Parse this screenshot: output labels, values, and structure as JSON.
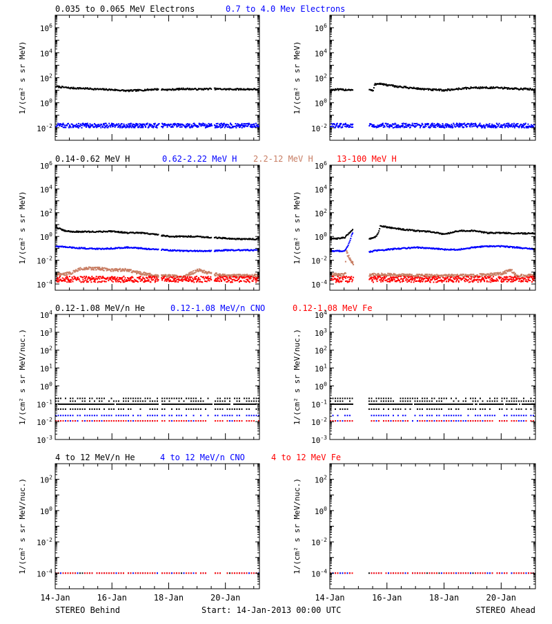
{
  "footer": {
    "left": "STEREO Behind",
    "center": "Start: 14-Jan-2013 00:00 UTC",
    "right": "STEREO Ahead"
  },
  "colors": {
    "black": "#000000",
    "blue": "#0000ff",
    "tan": "#c87e64",
    "red": "#ff0000"
  },
  "xaxis": {
    "range_days": [
      0,
      7.2
    ],
    "tick_days": [
      0,
      2,
      4,
      6
    ],
    "tick_labels": [
      "14-Jan",
      "16-Jan",
      "18-Jan",
      "20-Jan"
    ],
    "minor_step_days": 0.5
  },
  "chart_data": [
    {
      "type": "scatter",
      "row": 0,
      "spacecraft": "STEREO Behind",
      "ylog": true,
      "ylabel": "1/(cm² s sr MeV)",
      "ylim": [
        0.001,
        10000000
      ],
      "yticks": [
        {
          "v": 1000000,
          "m": "10",
          "e": "6"
        },
        {
          "v": 10000,
          "m": "10",
          "e": "4"
        },
        {
          "v": 100,
          "m": "10",
          "e": "2"
        },
        {
          "v": 1,
          "m": "10",
          "e": "0"
        },
        {
          "v": 0.01,
          "m": "10",
          "e": "-2"
        }
      ],
      "legend": [
        {
          "text": "0.035 to 0.065 MeV Electrons",
          "color": "#000000"
        },
        {
          "text": "0.7 to 4.0 Mev Electrons",
          "color": "#0000ff"
        }
      ],
      "gaps": [
        [
          3.62,
          3.72
        ],
        [
          5.5,
          5.57
        ]
      ],
      "series": [
        {
          "name": "0.035 to 0.065 MeV Electrons",
          "color": "#000000",
          "scatter_dex": 0.06,
          "x": [
            0,
            0.5,
            1,
            1.5,
            2,
            2.5,
            3,
            3.5,
            4,
            4.5,
            5,
            5.5,
            6,
            6.5,
            7.2
          ],
          "y": [
            20,
            15,
            14,
            12,
            11,
            9,
            10,
            12,
            11,
            13,
            12,
            13,
            12,
            12,
            12
          ]
        },
        {
          "name": "0.7 to 4.0 Mev Electrons",
          "color": "#0000ff",
          "scatter_dex": 0.18,
          "x": [
            0,
            7.2
          ],
          "y": [
            0.015,
            0.015
          ]
        }
      ]
    },
    {
      "type": "scatter",
      "row": 0,
      "spacecraft": "STEREO Ahead",
      "ylog": true,
      "ylabel": "1/(cm² s sr MeV)",
      "ylim": [
        0.001,
        10000000
      ],
      "yticks": [
        {
          "v": 1000000,
          "m": "10",
          "e": "6"
        },
        {
          "v": 10000,
          "m": "10",
          "e": "4"
        },
        {
          "v": 100,
          "m": "10",
          "e": "2"
        },
        {
          "v": 1,
          "m": "10",
          "e": "0"
        },
        {
          "v": 0.01,
          "m": "10",
          "e": "-2"
        }
      ],
      "legend": [],
      "gaps": [
        [
          0.78,
          1.35
        ]
      ],
      "series": [
        {
          "name": "0.035 to 0.065 MeV Electrons",
          "color": "#000000",
          "scatter_dex": 0.07,
          "x": [
            0,
            0.75,
            1.35,
            1.5,
            1.55,
            1.7,
            2,
            2.5,
            3,
            3.5,
            4,
            4.5,
            5,
            5.5,
            6,
            6.5,
            7.2
          ],
          "y": [
            11,
            11,
            11,
            9,
            30,
            35,
            25,
            18,
            14,
            11,
            10,
            13,
            16,
            16,
            15,
            13,
            12
          ]
        },
        {
          "name": "0.7 to 4.0 Mev Electrons",
          "color": "#0000ff",
          "scatter_dex": 0.18,
          "x": [
            0,
            7.2
          ],
          "y": [
            0.015,
            0.015
          ]
        }
      ]
    },
    {
      "type": "scatter",
      "row": 1,
      "spacecraft": "STEREO Behind",
      "ylog": true,
      "ylabel": "1/(cm² s sr MeV)",
      "ylim": [
        3e-05,
        1000000
      ],
      "yticks": [
        {
          "v": 1000000,
          "m": "10",
          "e": "6"
        },
        {
          "v": 10000,
          "m": "10",
          "e": "4"
        },
        {
          "v": 100,
          "m": "10",
          "e": "2"
        },
        {
          "v": 1,
          "m": "10",
          "e": "0"
        },
        {
          "v": 0.01,
          "m": "10",
          "e": "-2"
        },
        {
          "v": 0.0001,
          "m": "10",
          "e": "-4"
        }
      ],
      "legend": [
        {
          "text": "0.14-0.62 MeV H",
          "color": "#000000"
        },
        {
          "text": "0.62-2.22 MeV H",
          "color": "#0000ff"
        },
        {
          "text": "2.2-12 MeV H",
          "color": "#c87e64"
        },
        {
          "text": "13-100 MeV H",
          "color": "#ff0000"
        }
      ],
      "gaps": [
        [
          3.62,
          3.72
        ],
        [
          5.5,
          5.57
        ]
      ],
      "series": [
        {
          "name": "0.14-0.62 MeV H",
          "color": "#000000",
          "scatter_dex": 0.05,
          "x": [
            0,
            0.3,
            0.6,
            1,
            1.5,
            2,
            2.5,
            3,
            3.5,
            4,
            4.5,
            5,
            5.5,
            6,
            6.5,
            7.2
          ],
          "y": [
            6,
            3,
            2.5,
            2.5,
            2.5,
            2.8,
            2,
            2,
            1.5,
            1,
            1,
            1,
            0.8,
            0.7,
            0.6,
            0.6
          ]
        },
        {
          "name": "0.62-2.22 MeV H",
          "color": "#0000ff",
          "scatter_dex": 0.05,
          "x": [
            0,
            0.5,
            1,
            1.5,
            2,
            2.5,
            3,
            3.5,
            4,
            4.5,
            5,
            5.5,
            6,
            6.5,
            7.2
          ],
          "y": [
            0.15,
            0.12,
            0.1,
            0.09,
            0.1,
            0.12,
            0.1,
            0.08,
            0.07,
            0.06,
            0.06,
            0.06,
            0.07,
            0.07,
            0.07
          ]
        },
        {
          "name": "2.2-12 MeV H",
          "color": "#c87e64",
          "scatter_dex": 0.12,
          "x": [
            0,
            0.5,
            0.9,
            1.5,
            2,
            2.5,
            3,
            3.5,
            4,
            4.5,
            5,
            5.5,
            6,
            6.5,
            7.2
          ],
          "y": [
            0.0006,
            0.0008,
            0.002,
            0.002,
            0.0015,
            0.0015,
            0.0008,
            0.0005,
            0.0005,
            0.0004,
            0.0015,
            0.0007,
            0.0005,
            0.0005,
            0.0005
          ]
        },
        {
          "name": "13-100 MeV H",
          "color": "#ff0000",
          "scatter_dex": 0.25,
          "x": [
            0,
            7.2
          ],
          "y": [
            0.00025,
            0.00025
          ]
        }
      ]
    },
    {
      "type": "scatter",
      "row": 1,
      "spacecraft": "STEREO Ahead",
      "ylog": true,
      "ylabel": "1/(cm² s sr MeV)",
      "ylim": [
        3e-05,
        1000000
      ],
      "yticks": [
        {
          "v": 1000000,
          "m": "10",
          "e": "6"
        },
        {
          "v": 10000,
          "m": "10",
          "e": "4"
        },
        {
          "v": 100,
          "m": "10",
          "e": "2"
        },
        {
          "v": 1,
          "m": "10",
          "e": "0"
        },
        {
          "v": 0.01,
          "m": "10",
          "e": "-2"
        },
        {
          "v": 0.0001,
          "m": "10",
          "e": "-4"
        }
      ],
      "legend": [],
      "gaps": [
        [
          0.78,
          1.35
        ]
      ],
      "series": [
        {
          "name": "0.14-0.62 MeV H",
          "color": "#000000",
          "scatter_dex": 0.05,
          "x": [
            0,
            0.5,
            0.78,
            1.35,
            1.6,
            1.7,
            1.75,
            2,
            2.5,
            3,
            3.5,
            4,
            4.5,
            5,
            5.5,
            6,
            6.5,
            7.2
          ],
          "y": [
            0.6,
            0.8,
            4,
            0.6,
            1,
            3,
            8,
            6,
            4,
            3,
            2.5,
            1.5,
            3,
            3,
            2,
            2,
            1.8,
            1.8
          ]
        },
        {
          "name": "0.62-2.22 MeV H",
          "color": "#0000ff",
          "scatter_dex": 0.05,
          "x": [
            0,
            0.5,
            0.6,
            0.78,
            1.35,
            1.5,
            2,
            2.5,
            3,
            3.5,
            4,
            4.5,
            5,
            5.5,
            6,
            6.5,
            7.2
          ],
          "y": [
            0.06,
            0.06,
            0.15,
            2,
            0.05,
            0.06,
            0.08,
            0.1,
            0.12,
            0.1,
            0.08,
            0.08,
            0.12,
            0.15,
            0.15,
            0.12,
            0.08
          ]
        },
        {
          "name": "2.2-12 MeV H",
          "color": "#c87e64",
          "scatter_dex": 0.12,
          "x": [
            0,
            0.5,
            0.55,
            0.65,
            0.78,
            1.35,
            2,
            3,
            4,
            4.5,
            5,
            5.5,
            6,
            6.3,
            6.5,
            7.2
          ],
          "y": [
            0.0006,
            0.0006,
            0.05,
            0.015,
            0.005,
            0.0006,
            0.0006,
            0.0005,
            0.0005,
            0.0005,
            0.0005,
            0.0006,
            0.0008,
            0.0015,
            0.0005,
            0.0005
          ]
        },
        {
          "name": "13-100 MeV H",
          "color": "#ff0000",
          "scatter_dex": 0.25,
          "x": [
            0,
            7.2
          ],
          "y": [
            0.00025,
            0.00025
          ]
        }
      ]
    },
    {
      "type": "scatter",
      "row": 2,
      "spacecraft": "STEREO Behind",
      "ylog": true,
      "ylabel": "1/(cm² s sr MeV/nuc.)",
      "ylim": [
        0.001,
        10000
      ],
      "yticks": [
        {
          "v": 10000,
          "m": "10",
          "e": "4"
        },
        {
          "v": 1000,
          "m": "10",
          "e": "3"
        },
        {
          "v": 100,
          "m": "10",
          "e": "2"
        },
        {
          "v": 10,
          "m": "10",
          "e": "1"
        },
        {
          "v": 1,
          "m": "10",
          "e": "0"
        },
        {
          "v": 0.1,
          "m": "10",
          "e": "-1"
        },
        {
          "v": 0.01,
          "m": "10",
          "e": "-2"
        },
        {
          "v": 0.001,
          "m": "10",
          "e": "-3"
        }
      ],
      "legend": [
        {
          "text": "0.12-1.08 MeV/n He",
          "color": "#000000"
        },
        {
          "text": "0.12-1.08 MeV/n CNO",
          "color": "#0000ff"
        },
        {
          "text": "0.12-1.08 MeV Fe",
          "color": "#ff0000"
        }
      ],
      "gaps": [
        [
          3.62,
          3.72
        ],
        [
          5.5,
          5.57
        ]
      ],
      "series": [
        {
          "name": "0.12-1.08 MeV/n He",
          "color": "#000000",
          "levels": [
            0.05,
            0.095,
            0.14,
            0.2
          ],
          "x": [
            0,
            7.2
          ]
        },
        {
          "name": "0.12-1.08 MeV/n CNO",
          "color": "#0000ff",
          "levels": [
            0.011,
            0.022
          ],
          "x": [
            0,
            7.2
          ]
        },
        {
          "name": "0.12-1.08 MeV Fe",
          "color": "#ff0000",
          "levels": [
            0.011
          ],
          "x": [
            0,
            7.2
          ]
        }
      ]
    },
    {
      "type": "scatter",
      "row": 2,
      "spacecraft": "STEREO Ahead",
      "ylog": true,
      "ylabel": "1/(cm² s sr MeV/nuc.)",
      "ylim": [
        0.001,
        10000
      ],
      "yticks": [
        {
          "v": 10000,
          "m": "10",
          "e": "4"
        },
        {
          "v": 1000,
          "m": "10",
          "e": "3"
        },
        {
          "v": 100,
          "m": "10",
          "e": "2"
        },
        {
          "v": 10,
          "m": "10",
          "e": "1"
        },
        {
          "v": 1,
          "m": "10",
          "e": "0"
        },
        {
          "v": 0.1,
          "m": "10",
          "e": "-1"
        },
        {
          "v": 0.01,
          "m": "10",
          "e": "-2"
        },
        {
          "v": 0.001,
          "m": "10",
          "e": "-3"
        }
      ],
      "legend": [],
      "gaps": [
        [
          0.78,
          1.35
        ]
      ],
      "series": [
        {
          "name": "0.12-1.08 MeV/n He",
          "color": "#000000",
          "levels": [
            0.05,
            0.095,
            0.14,
            0.2
          ],
          "x": [
            0,
            7.2
          ]
        },
        {
          "name": "0.12-1.08 MeV/n CNO",
          "color": "#0000ff",
          "levels": [
            0.011,
            0.022
          ],
          "x": [
            0,
            7.2
          ]
        },
        {
          "name": "0.12-1.08 MeV Fe",
          "color": "#ff0000",
          "levels": [
            0.011
          ],
          "x": [
            0,
            7.2
          ]
        }
      ]
    },
    {
      "type": "scatter",
      "row": 3,
      "spacecraft": "STEREO Behind",
      "ylog": true,
      "ylabel": "1/(cm² s sr MeV/nuc.)",
      "ylim": [
        1e-05,
        1000
      ],
      "yticks": [
        {
          "v": 100,
          "m": "10",
          "e": "2"
        },
        {
          "v": 1,
          "m": "10",
          "e": "0"
        },
        {
          "v": 0.01,
          "m": "10",
          "e": "-2"
        },
        {
          "v": 0.0001,
          "m": "10",
          "e": "-4"
        }
      ],
      "legend": [
        {
          "text": "4 to 12 MeV/n He",
          "color": "#000000"
        },
        {
          "text": "4 to 12 MeV/n CNO",
          "color": "#0000ff"
        },
        {
          "text": "4 to 12 MeV Fe",
          "color": "#ff0000"
        }
      ],
      "gaps": [
        [
          3.62,
          3.72
        ],
        [
          5.5,
          5.57
        ]
      ],
      "series": [
        {
          "name": "4 to 12 MeV/n He",
          "color": "#000000",
          "levels": [
            0.0001
          ],
          "x": [
            0,
            7.2
          ]
        },
        {
          "name": "4 to 12 MeV/n CNO",
          "color": "#0000ff",
          "levels": [
            0.0001
          ],
          "x": [
            0,
            7.2
          ]
        },
        {
          "name": "4 to 12 MeV Fe",
          "color": "#ff0000",
          "levels": [
            0.0001
          ],
          "x": [
            0,
            7.2
          ]
        }
      ]
    },
    {
      "type": "scatter",
      "row": 3,
      "spacecraft": "STEREO Ahead",
      "ylog": true,
      "ylabel": "1/(cm² s sr MeV/nuc.)",
      "ylim": [
        1e-05,
        1000
      ],
      "yticks": [
        {
          "v": 100,
          "m": "10",
          "e": "2"
        },
        {
          "v": 1,
          "m": "10",
          "e": "0"
        },
        {
          "v": 0.01,
          "m": "10",
          "e": "-2"
        },
        {
          "v": 0.0001,
          "m": "10",
          "e": "-4"
        }
      ],
      "legend": [],
      "gaps": [
        [
          0.78,
          1.35
        ]
      ],
      "series": [
        {
          "name": "4 to 12 MeV/n He",
          "color": "#000000",
          "levels": [
            0.0001
          ],
          "x": [
            0,
            7.2
          ]
        },
        {
          "name": "4 to 12 MeV/n CNO",
          "color": "#0000ff",
          "levels": [
            0.0001
          ],
          "x": [
            0,
            7.2
          ]
        },
        {
          "name": "4 to 12 MeV Fe",
          "color": "#ff0000",
          "levels": [
            0.0001
          ],
          "x": [
            0,
            7.2
          ]
        }
      ]
    }
  ]
}
